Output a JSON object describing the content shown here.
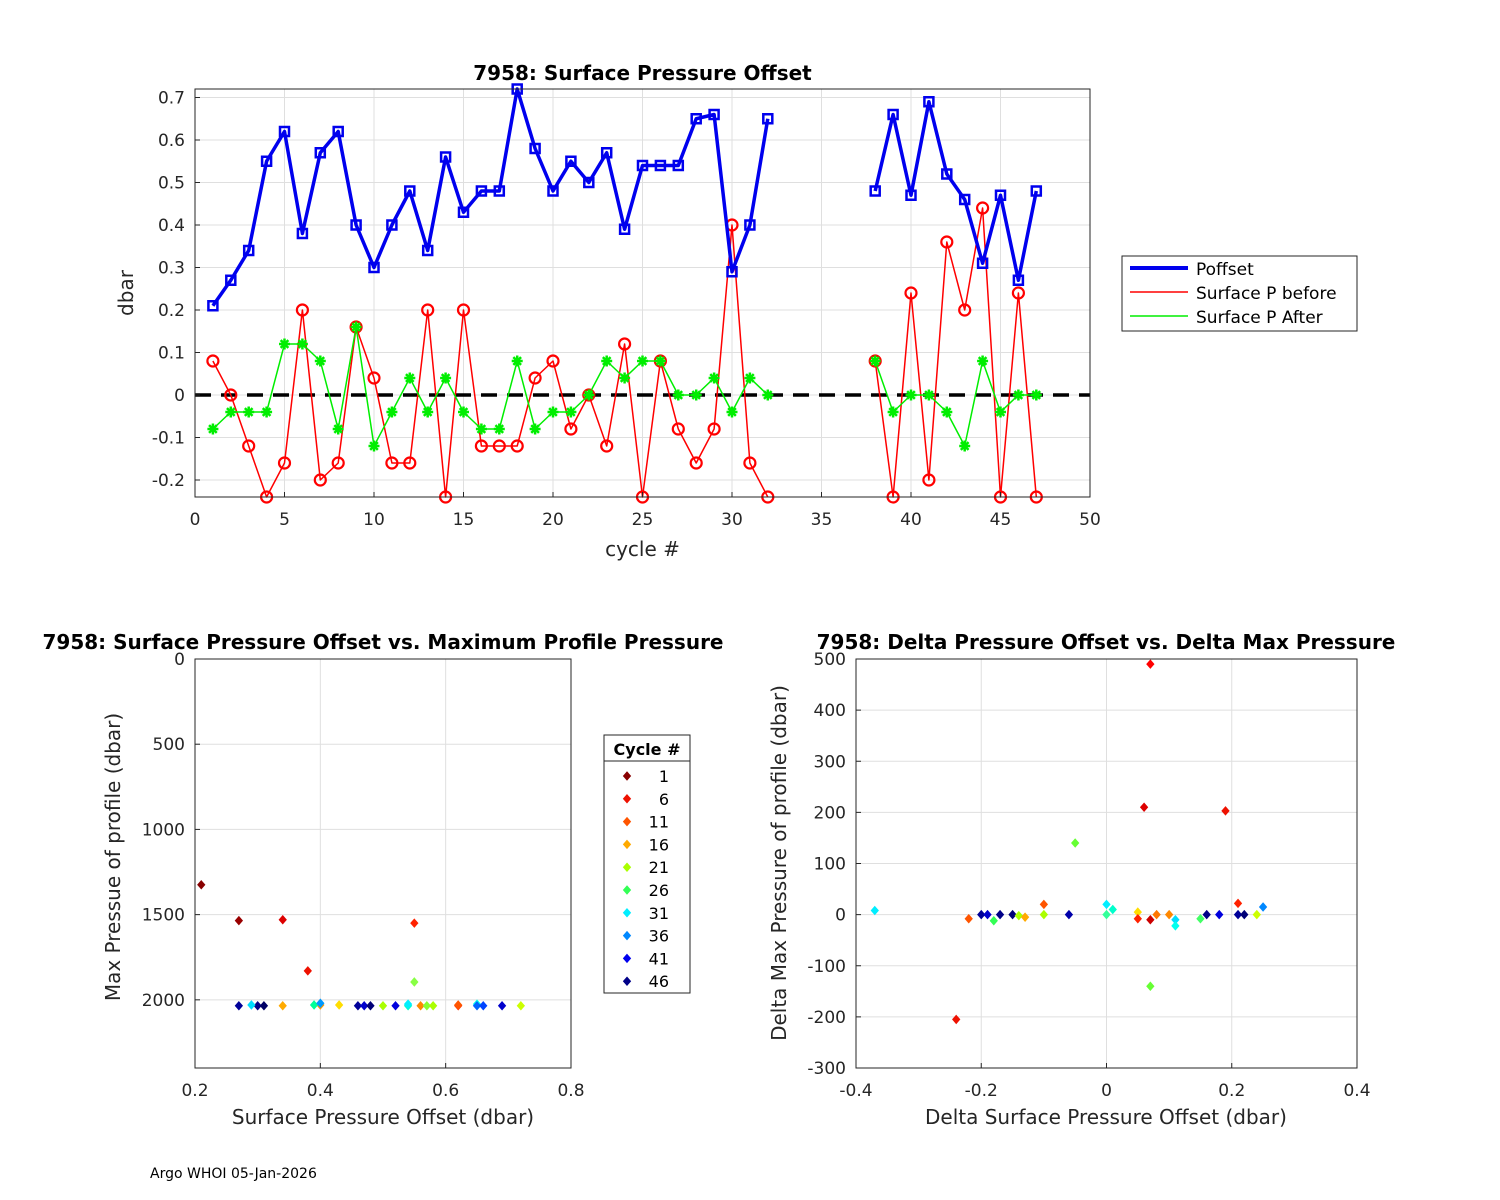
{
  "footer": "Argo WHOI 05-Jan-2026",
  "chart_data": [
    {
      "type": "line",
      "title": "7958: Surface Pressure Offset",
      "xlabel": "cycle #",
      "ylabel": "dbar",
      "xlim": [
        0,
        50
      ],
      "ylim": [
        -0.24,
        0.72
      ],
      "xticks": [
        0,
        5,
        10,
        15,
        20,
        25,
        30,
        35,
        40,
        45,
        50
      ],
      "yticks": [
        -0.2,
        -0.1,
        0,
        0.1,
        0.2,
        0.3,
        0.4,
        0.5,
        0.6,
        0.7
      ],
      "ytick_labels": [
        "-0.2",
        "-0.1",
        "0",
        "0.1",
        "0.2",
        "0.3",
        "0.4",
        "0.5",
        "0.6",
        "0.7"
      ],
      "grid": true,
      "legend": {
        "position": "outside-right",
        "entries": [
          "Poffset",
          "Surface P before",
          "Surface P After"
        ]
      },
      "zero_line": 0,
      "cycles": [
        1,
        2,
        3,
        4,
        5,
        6,
        7,
        8,
        9,
        10,
        11,
        12,
        13,
        14,
        15,
        16,
        17,
        18,
        19,
        20,
        21,
        22,
        23,
        24,
        25,
        26,
        27,
        28,
        29,
        30,
        31,
        32,
        38,
        39,
        40,
        41,
        42,
        43,
        44,
        45,
        46,
        47
      ],
      "series": [
        {
          "name": "Poffset",
          "color": "#0000ee",
          "marker": "square",
          "values": [
            0.21,
            0.27,
            0.34,
            0.55,
            0.62,
            0.38,
            0.57,
            0.62,
            0.4,
            0.3,
            0.4,
            0.48,
            0.34,
            0.56,
            0.43,
            0.48,
            0.48,
            0.72,
            0.58,
            0.48,
            0.55,
            0.5,
            0.57,
            0.39,
            0.54,
            0.54,
            0.54,
            0.65,
            0.66,
            0.29,
            0.4,
            0.65,
            0.48,
            0.66,
            0.47,
            0.69,
            0.52,
            0.46,
            0.31,
            0.47,
            0.27,
            0.48
          ]
        },
        {
          "name": "Surface P before",
          "color": "#ff0000",
          "marker": "circle",
          "values": [
            0.08,
            0.0,
            -0.12,
            -0.24,
            -0.16,
            0.2,
            -0.2,
            -0.16,
            0.16,
            0.04,
            -0.16,
            -0.16,
            0.2,
            -0.24,
            0.2,
            -0.12,
            -0.12,
            -0.12,
            0.04,
            0.08,
            -0.08,
            0.0,
            -0.12,
            0.12,
            -0.24,
            0.08,
            -0.08,
            -0.16,
            -0.08,
            0.4,
            -0.16,
            -0.24,
            0.08,
            -0.24,
            0.24,
            -0.2,
            0.36,
            0.2,
            0.44,
            -0.24,
            0.24,
            -0.24
          ]
        },
        {
          "name": "Surface P After",
          "color": "#00ee00",
          "marker": "star",
          "values": [
            -0.08,
            -0.04,
            -0.04,
            -0.04,
            0.12,
            0.12,
            0.08,
            -0.08,
            0.16,
            -0.12,
            -0.04,
            0.04,
            -0.04,
            0.04,
            -0.04,
            -0.08,
            -0.08,
            0.08,
            -0.08,
            -0.04,
            -0.04,
            0.0,
            0.08,
            0.04,
            0.08,
            0.08,
            0.0,
            0.0,
            0.04,
            -0.04,
            0.04,
            0.0,
            0.08,
            -0.04,
            0.0,
            0.0,
            -0.04,
            -0.12,
            0.08,
            -0.04,
            0.0,
            0.0
          ]
        }
      ]
    },
    {
      "type": "scatter",
      "title": "7958: Surface Pressure Offset vs. Maximum Profile Pressure",
      "xlabel": "Surface Pressure Offset (dbar)",
      "ylabel": "Max Pressue of profile (dbar)",
      "xlim": [
        0.2,
        0.8
      ],
      "ylim": [
        0,
        2400
      ],
      "y_reversed": true,
      "xticks": [
        0.2,
        0.4,
        0.6,
        0.8
      ],
      "xtick_labels": [
        "0.2",
        "0.4",
        "0.6",
        "0.8"
      ],
      "yticks": [
        0,
        500,
        1000,
        1500,
        2000
      ],
      "grid": true,
      "legend": {
        "title": "Cycle #",
        "position": "outside-right",
        "entries": [
          "1",
          "6",
          "11",
          "16",
          "21",
          "26",
          "31",
          "36",
          "41",
          "46"
        ],
        "colors": [
          "#880000",
          "#ee1100",
          "#ff5500",
          "#ffaa00",
          "#aaff00",
          "#33ff55",
          "#00eeff",
          "#0088ff",
          "#0000ee",
          "#000088"
        ]
      },
      "points": [
        [
          0.21,
          1325,
          "#880000"
        ],
        [
          0.27,
          1535,
          "#990000"
        ],
        [
          0.34,
          1530,
          "#dd0000"
        ],
        [
          0.38,
          1830,
          "#ee1100"
        ],
        [
          0.55,
          1550,
          "#ff2200"
        ],
        [
          0.55,
          1895,
          "#88ff44"
        ],
        [
          0.27,
          2035,
          "#000099"
        ],
        [
          0.3,
          2035,
          "#000088"
        ],
        [
          0.31,
          2035,
          "#000066"
        ],
        [
          0.29,
          2030,
          "#00ddff"
        ],
        [
          0.34,
          2035,
          "#ffaa00"
        ],
        [
          0.4,
          2030,
          "#ff9900"
        ],
        [
          0.39,
          2030,
          "#00ff99"
        ],
        [
          0.4,
          2020,
          "#0099ff"
        ],
        [
          0.43,
          2030,
          "#ffdd00"
        ],
        [
          0.46,
          2035,
          "#000099"
        ],
        [
          0.47,
          2035,
          "#0000cc"
        ],
        [
          0.48,
          2035,
          "#000077"
        ],
        [
          0.5,
          2035,
          "#aaff00"
        ],
        [
          0.52,
          2035,
          "#0000dd"
        ],
        [
          0.54,
          2035,
          "#00ffcc"
        ],
        [
          0.54,
          2025,
          "#00eeff"
        ],
        [
          0.56,
          2035,
          "#ff8800"
        ],
        [
          0.57,
          2035,
          "#88ff33"
        ],
        [
          0.58,
          2035,
          "#aaff00"
        ],
        [
          0.62,
          2035,
          "#ff3300"
        ],
        [
          0.62,
          2030,
          "#ff5500"
        ],
        [
          0.65,
          2025,
          "#00ffee"
        ],
        [
          0.65,
          2035,
          "#0066ff"
        ],
        [
          0.66,
          2035,
          "#0044ff"
        ],
        [
          0.69,
          2035,
          "#0000cc"
        ],
        [
          0.72,
          2035,
          "#ccff00"
        ]
      ]
    },
    {
      "type": "scatter",
      "title": "7958: Delta Pressure Offset vs. Delta Max Pressure",
      "xlabel": "Delta Surface Pressure Offset (dbar)",
      "ylabel": "Delta Max Pressure of profile (dbar)",
      "xlim": [
        -0.4,
        0.4
      ],
      "ylim": [
        -300,
        500
      ],
      "xticks": [
        -0.4,
        -0.2,
        0,
        0.2,
        0.4
      ],
      "xtick_labels": [
        "-0.4",
        "-0.2",
        "0",
        "0.2",
        "0.4"
      ],
      "yticks": [
        -300,
        -200,
        -100,
        0,
        100,
        200,
        300,
        400,
        500
      ],
      "grid": true,
      "points": [
        [
          -0.37,
          8,
          "#00eeff"
        ],
        [
          -0.24,
          -205,
          "#ee1100"
        ],
        [
          -0.22,
          -8,
          "#ff5500"
        ],
        [
          -0.2,
          0,
          "#000099"
        ],
        [
          -0.19,
          0,
          "#0000cc"
        ],
        [
          -0.17,
          0,
          "#000088"
        ],
        [
          -0.15,
          0,
          "#000077"
        ],
        [
          -0.14,
          -2,
          "#aaff00"
        ],
        [
          -0.18,
          -12,
          "#33ff55"
        ],
        [
          -0.13,
          -5,
          "#ffaa00"
        ],
        [
          -0.1,
          20,
          "#ff5500"
        ],
        [
          -0.1,
          0,
          "#aaff00"
        ],
        [
          -0.05,
          140,
          "#66ff33"
        ],
        [
          -0.06,
          0,
          "#0000aa"
        ],
        [
          0.0,
          20,
          "#00eeff"
        ],
        [
          0.0,
          0,
          "#33ff99"
        ],
        [
          0.01,
          10,
          "#00ffcc"
        ],
        [
          0.05,
          5,
          "#ffdd00"
        ],
        [
          0.05,
          -8,
          "#ff2200"
        ],
        [
          0.06,
          210,
          "#dd0000"
        ],
        [
          0.07,
          490,
          "#ff0000"
        ],
        [
          0.07,
          -140,
          "#66ff33"
        ],
        [
          0.07,
          -10,
          "#cc0000"
        ],
        [
          0.08,
          0,
          "#ff7700"
        ],
        [
          0.1,
          0,
          "#ff8800"
        ],
        [
          0.11,
          -10,
          "#00ddff"
        ],
        [
          0.11,
          -22,
          "#00ffee"
        ],
        [
          0.15,
          -8,
          "#44ff66"
        ],
        [
          0.16,
          0,
          "#000088"
        ],
        [
          0.18,
          0,
          "#0000dd"
        ],
        [
          0.19,
          203,
          "#ee1100"
        ],
        [
          0.21,
          22,
          "#ff2200"
        ],
        [
          0.21,
          0,
          "#000099"
        ],
        [
          0.22,
          0,
          "#000077"
        ],
        [
          0.24,
          0,
          "#ccff00"
        ],
        [
          0.25,
          15,
          "#0088ff"
        ]
      ]
    }
  ]
}
